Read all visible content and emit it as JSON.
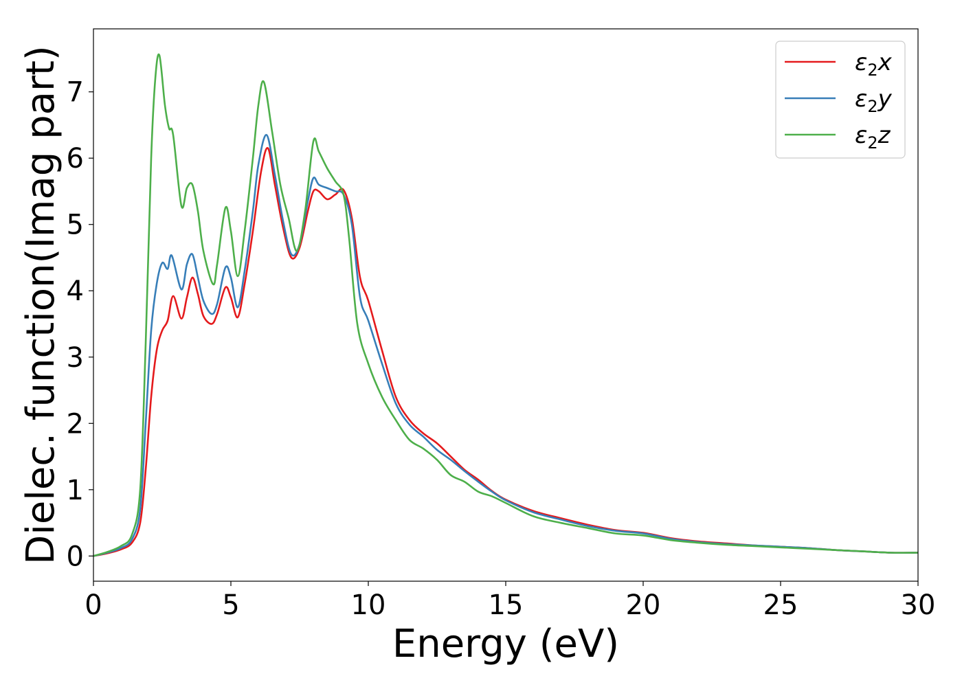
{
  "chart_data": {
    "type": "line",
    "xlabel": "Energy (eV)",
    "ylabel": "Dielec. function(Imag part)",
    "xlim": [
      0,
      30
    ],
    "ylim": [
      -0.38,
      7.95
    ],
    "xticks": [
      0,
      5,
      10,
      15,
      20,
      25,
      30
    ],
    "xtick_labels": [
      "0",
      "5",
      "10",
      "15",
      "20",
      "25",
      "30"
    ],
    "yticks": [
      0,
      1,
      2,
      3,
      4,
      5,
      6,
      7
    ],
    "ytick_labels": [
      "0",
      "1",
      "2",
      "3",
      "4",
      "5",
      "6",
      "7"
    ],
    "grid": false,
    "legend_position": "top-right",
    "series": [
      {
        "name": "ε₂x",
        "legend_base": "ε",
        "legend_sub": "2",
        "legend_var": "x",
        "color": "#e41a1c",
        "points": [
          [
            0,
            0
          ],
          [
            0.5,
            0.04
          ],
          [
            1.0,
            0.1
          ],
          [
            1.4,
            0.2
          ],
          [
            1.7,
            0.5
          ],
          [
            1.9,
            1.3
          ],
          [
            2.1,
            2.4
          ],
          [
            2.3,
            3.1
          ],
          [
            2.5,
            3.4
          ],
          [
            2.7,
            3.55
          ],
          [
            2.9,
            3.92
          ],
          [
            3.2,
            3.58
          ],
          [
            3.4,
            3.9
          ],
          [
            3.6,
            4.2
          ],
          [
            3.8,
            3.95
          ],
          [
            4.0,
            3.62
          ],
          [
            4.3,
            3.5
          ],
          [
            4.5,
            3.65
          ],
          [
            4.8,
            4.05
          ],
          [
            5.0,
            3.9
          ],
          [
            5.25,
            3.6
          ],
          [
            5.5,
            4.1
          ],
          [
            5.8,
            4.9
          ],
          [
            6.1,
            5.8
          ],
          [
            6.35,
            6.15
          ],
          [
            6.6,
            5.6
          ],
          [
            6.9,
            4.95
          ],
          [
            7.2,
            4.5
          ],
          [
            7.5,
            4.65
          ],
          [
            7.8,
            5.2
          ],
          [
            8.0,
            5.5
          ],
          [
            8.2,
            5.5
          ],
          [
            8.5,
            5.38
          ],
          [
            8.8,
            5.45
          ],
          [
            9.1,
            5.52
          ],
          [
            9.4,
            5.1
          ],
          [
            9.7,
            4.2
          ],
          [
            10.0,
            3.85
          ],
          [
            10.5,
            3.1
          ],
          [
            11.0,
            2.4
          ],
          [
            11.5,
            2.05
          ],
          [
            12.0,
            1.85
          ],
          [
            12.5,
            1.7
          ],
          [
            13.0,
            1.5
          ],
          [
            13.5,
            1.3
          ],
          [
            14.0,
            1.15
          ],
          [
            14.5,
            0.98
          ],
          [
            15.0,
            0.85
          ],
          [
            16.0,
            0.68
          ],
          [
            17.0,
            0.57
          ],
          [
            18.0,
            0.47
          ],
          [
            19.0,
            0.39
          ],
          [
            20.0,
            0.35
          ],
          [
            21.0,
            0.27
          ],
          [
            22.0,
            0.22
          ],
          [
            23.0,
            0.19
          ],
          [
            24.0,
            0.16
          ],
          [
            25.0,
            0.14
          ],
          [
            26.0,
            0.12
          ],
          [
            27.0,
            0.09
          ],
          [
            28.0,
            0.07
          ],
          [
            29.0,
            0.05
          ],
          [
            30.0,
            0.05
          ]
        ]
      },
      {
        "name": "ε₂y",
        "legend_base": "ε",
        "legend_sub": "2",
        "legend_var": "y",
        "color": "#377eb8",
        "points": [
          [
            0,
            0
          ],
          [
            0.5,
            0.05
          ],
          [
            1.0,
            0.12
          ],
          [
            1.4,
            0.25
          ],
          [
            1.7,
            0.7
          ],
          [
            1.9,
            2.0
          ],
          [
            2.1,
            3.4
          ],
          [
            2.3,
            4.1
          ],
          [
            2.5,
            4.42
          ],
          [
            2.7,
            4.33
          ],
          [
            2.85,
            4.53
          ],
          [
            3.2,
            4.02
          ],
          [
            3.4,
            4.4
          ],
          [
            3.6,
            4.55
          ],
          [
            3.8,
            4.2
          ],
          [
            4.0,
            3.85
          ],
          [
            4.3,
            3.65
          ],
          [
            4.5,
            3.8
          ],
          [
            4.8,
            4.35
          ],
          [
            5.0,
            4.2
          ],
          [
            5.25,
            3.75
          ],
          [
            5.5,
            4.3
          ],
          [
            5.8,
            5.2
          ],
          [
            6.0,
            5.9
          ],
          [
            6.3,
            6.35
          ],
          [
            6.6,
            5.75
          ],
          [
            6.9,
            5.05
          ],
          [
            7.2,
            4.55
          ],
          [
            7.5,
            4.7
          ],
          [
            7.8,
            5.35
          ],
          [
            8.0,
            5.7
          ],
          [
            8.2,
            5.6
          ],
          [
            8.5,
            5.55
          ],
          [
            8.8,
            5.5
          ],
          [
            9.1,
            5.45
          ],
          [
            9.4,
            5.0
          ],
          [
            9.7,
            3.9
          ],
          [
            10.0,
            3.55
          ],
          [
            10.5,
            2.9
          ],
          [
            11.0,
            2.3
          ],
          [
            11.5,
            1.98
          ],
          [
            12.0,
            1.8
          ],
          [
            12.5,
            1.6
          ],
          [
            13.0,
            1.45
          ],
          [
            13.5,
            1.28
          ],
          [
            14.0,
            1.12
          ],
          [
            14.5,
            0.97
          ],
          [
            15.0,
            0.84
          ],
          [
            16.0,
            0.66
          ],
          [
            17.0,
            0.55
          ],
          [
            18.0,
            0.45
          ],
          [
            19.0,
            0.38
          ],
          [
            20.0,
            0.34
          ],
          [
            21.0,
            0.26
          ],
          [
            22.0,
            0.21
          ],
          [
            23.0,
            0.18
          ],
          [
            24.0,
            0.16
          ],
          [
            25.0,
            0.14
          ],
          [
            26.0,
            0.12
          ],
          [
            27.0,
            0.09
          ],
          [
            28.0,
            0.07
          ],
          [
            29.0,
            0.05
          ],
          [
            30.0,
            0.05
          ]
        ]
      },
      {
        "name": "ε₂z",
        "legend_base": "ε",
        "legend_sub": "2",
        "legend_var": "z",
        "color": "#4daf4a",
        "points": [
          [
            0,
            0
          ],
          [
            0.5,
            0.06
          ],
          [
            1.0,
            0.15
          ],
          [
            1.4,
            0.32
          ],
          [
            1.7,
            1.0
          ],
          [
            1.9,
            3.2
          ],
          [
            2.1,
            6.0
          ],
          [
            2.25,
            7.2
          ],
          [
            2.4,
            7.55
          ],
          [
            2.6,
            6.8
          ],
          [
            2.75,
            6.45
          ],
          [
            2.9,
            6.35
          ],
          [
            3.2,
            5.28
          ],
          [
            3.4,
            5.55
          ],
          [
            3.6,
            5.6
          ],
          [
            3.8,
            5.2
          ],
          [
            4.0,
            4.6
          ],
          [
            4.35,
            4.1
          ],
          [
            4.5,
            4.4
          ],
          [
            4.8,
            5.25
          ],
          [
            5.0,
            4.9
          ],
          [
            5.25,
            4.22
          ],
          [
            5.5,
            4.9
          ],
          [
            5.8,
            6.0
          ],
          [
            6.0,
            6.8
          ],
          [
            6.2,
            7.15
          ],
          [
            6.5,
            6.4
          ],
          [
            6.8,
            5.6
          ],
          [
            7.1,
            5.1
          ],
          [
            7.4,
            4.6
          ],
          [
            7.7,
            5.2
          ],
          [
            8.0,
            6.25
          ],
          [
            8.2,
            6.1
          ],
          [
            8.5,
            5.85
          ],
          [
            8.8,
            5.65
          ],
          [
            9.1,
            5.45
          ],
          [
            9.3,
            4.8
          ],
          [
            9.6,
            3.5
          ],
          [
            10.0,
            2.9
          ],
          [
            10.5,
            2.4
          ],
          [
            11.0,
            2.05
          ],
          [
            11.5,
            1.75
          ],
          [
            12.0,
            1.62
          ],
          [
            12.5,
            1.45
          ],
          [
            13.0,
            1.22
          ],
          [
            13.5,
            1.12
          ],
          [
            14.0,
            0.97
          ],
          [
            14.5,
            0.9
          ],
          [
            15.0,
            0.8
          ],
          [
            16.0,
            0.6
          ],
          [
            17.0,
            0.5
          ],
          [
            18.0,
            0.42
          ],
          [
            19.0,
            0.34
          ],
          [
            20.0,
            0.31
          ],
          [
            21.0,
            0.24
          ],
          [
            22.0,
            0.2
          ],
          [
            23.0,
            0.17
          ],
          [
            24.0,
            0.15
          ],
          [
            25.0,
            0.13
          ],
          [
            26.0,
            0.11
          ],
          [
            27.0,
            0.09
          ],
          [
            28.0,
            0.07
          ],
          [
            29.0,
            0.05
          ],
          [
            30.0,
            0.05
          ]
        ]
      }
    ]
  }
}
